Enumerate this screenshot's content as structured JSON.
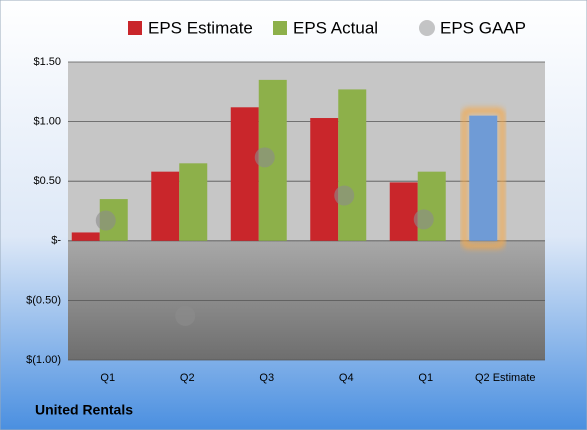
{
  "chart_data": {
    "type": "bar",
    "title": "United Rentals",
    "categories": [
      "Q1",
      "Q2",
      "Q3",
      "Q4",
      "Q1",
      "Q2 Estimate"
    ],
    "series": [
      {
        "name": "EPS Estimate",
        "color": "#c9262b",
        "values": [
          0.07,
          0.58,
          1.12,
          1.03,
          0.49,
          1.05
        ],
        "point_colors": [
          "#c9262b",
          "#c9262b",
          "#c9262b",
          "#c9262b",
          "#c9262b",
          "#6f9bd6"
        ],
        "glow_color": "#f5a94a"
      },
      {
        "name": "EPS Actual",
        "color": "#8db04a",
        "values": [
          0.35,
          0.65,
          1.35,
          1.27,
          0.58,
          null
        ]
      },
      {
        "name": "EPS GAAP",
        "color": "#8c8c8c",
        "marker": "circle",
        "values": [
          0.17,
          -0.63,
          0.7,
          0.38,
          0.18,
          null
        ]
      }
    ],
    "ylim": [
      -1.0,
      1.5
    ],
    "yticks": [
      {
        "value": 1.5,
        "label": "$1.50"
      },
      {
        "value": 1.0,
        "label": "$1.00"
      },
      {
        "value": 0.5,
        "label": "$0.50"
      },
      {
        "value": 0,
        "label": "$-"
      },
      {
        "value": -0.5,
        "label": "$(0.50)"
      },
      {
        "value": -1.0,
        "label": "$(1.00)"
      }
    ],
    "grid": true
  }
}
